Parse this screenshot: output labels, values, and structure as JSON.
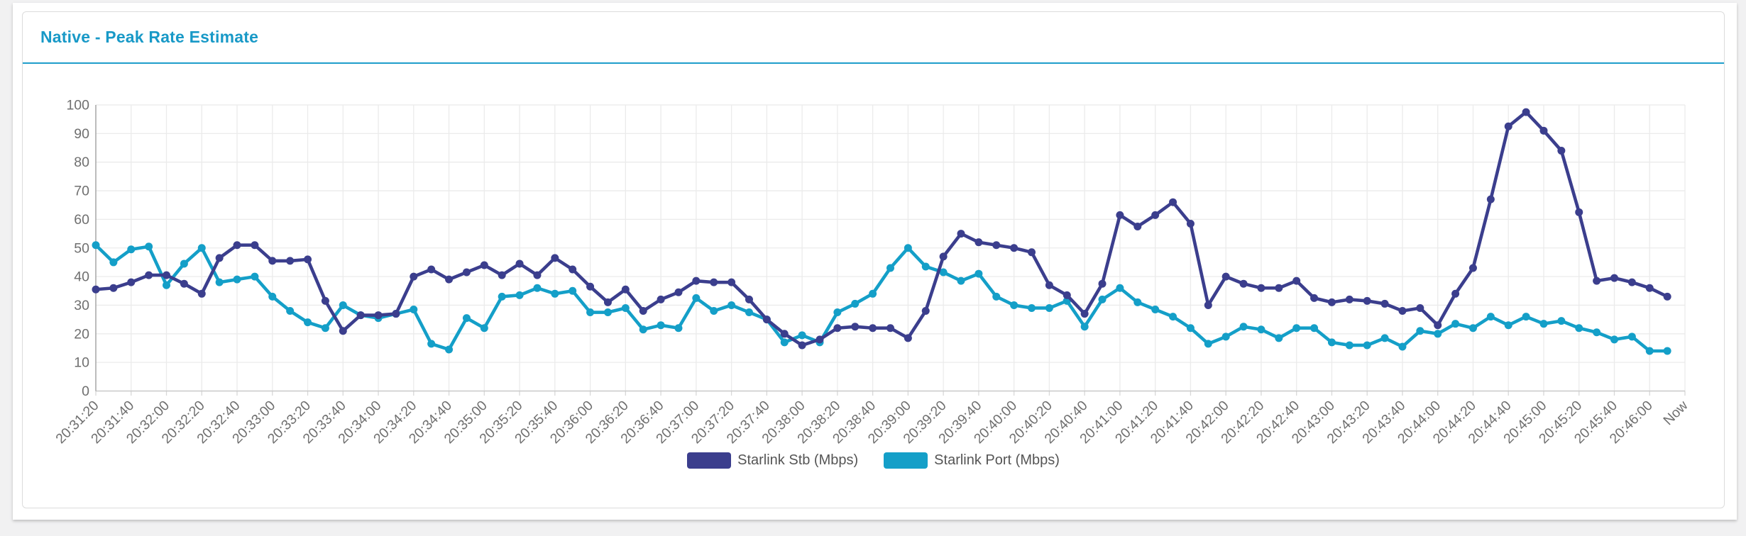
{
  "card": {
    "title": "Native - Peak Rate Estimate"
  },
  "colors": {
    "title": "#1899c7",
    "header_rule": "#1f9ecb",
    "grid_line": "#ebebeb",
    "x_axis_line": "#c9c9c9",
    "y_axis_line": "#ababab",
    "tick_stub": "#d8d8d8",
    "axis_label_text": "#6f6f6f",
    "legend_text": "#555555",
    "card_border": "#dcdcdc",
    "page_background": "#f1f1f2"
  },
  "chart_data": {
    "type": "line",
    "title": "Native - Peak Rate Estimate",
    "xlabel": "",
    "ylabel": "",
    "ylim": [
      0,
      100
    ],
    "y_tick_step": 10,
    "grid": true,
    "legend_position": "bottom-center",
    "sample_interval_seconds": 10,
    "points_per_tick_interval": 2,
    "x_tick_labels": [
      "20:31:20",
      "20:31:40",
      "20:32:00",
      "20:32:20",
      "20:32:40",
      "20:33:00",
      "20:33:20",
      "20:33:40",
      "20:34:00",
      "20:34:20",
      "20:34:40",
      "20:35:00",
      "20:35:20",
      "20:35:40",
      "20:36:00",
      "20:36:20",
      "20:36:40",
      "20:37:00",
      "20:37:20",
      "20:37:40",
      "20:38:00",
      "20:38:20",
      "20:38:40",
      "20:39:00",
      "20:39:20",
      "20:39:40",
      "20:40:00",
      "20:40:20",
      "20:40:40",
      "20:41:00",
      "20:41:20",
      "20:41:40",
      "20:42:00",
      "20:42:20",
      "20:42:40",
      "20:43:00",
      "20:43:20",
      "20:43:40",
      "20:44:00",
      "20:44:20",
      "20:44:40",
      "20:45:00",
      "20:45:20",
      "20:45:40",
      "20:46:00",
      "Now"
    ],
    "series": [
      {
        "name": "Starlink Stb (Mbps)",
        "color": "#3b3e8d",
        "values": [
          35.5,
          36,
          38,
          40.5,
          40.5,
          37.5,
          34,
          46.5,
          51,
          51,
          45.5,
          45.5,
          46,
          31.5,
          21,
          26.5,
          26.5,
          27,
          40,
          42.5,
          39,
          41.5,
          44,
          40.5,
          44.5,
          40.5,
          46.5,
          42.5,
          36.5,
          31,
          35.5,
          28,
          32,
          34.5,
          38.5,
          38,
          38,
          32,
          25,
          20,
          16,
          18,
          22,
          22.5,
          22,
          22,
          18.5,
          28,
          47,
          55,
          52,
          51,
          50,
          48.5,
          37,
          33.5,
          27,
          37.5,
          61.5,
          57.5,
          61.5,
          66,
          58.5,
          30,
          40,
          37.5,
          36,
          36,
          38.5,
          32.5,
          31,
          32,
          31.5,
          30.5,
          28,
          29,
          23,
          34,
          43,
          67,
          92.5,
          97.5,
          91,
          84,
          62.5,
          38.5,
          39.5,
          38,
          36,
          33
        ]
      },
      {
        "name": "Starlink Port (Mbps)",
        "color": "#149fc8",
        "values": [
          51,
          45,
          49.5,
          50.5,
          37,
          44.5,
          50,
          38,
          39,
          40,
          33,
          28,
          24,
          22,
          30,
          26.5,
          25.5,
          27,
          28.5,
          16.5,
          14.5,
          25.5,
          22,
          33,
          33.5,
          36,
          34,
          35,
          27.5,
          27.5,
          29,
          21.5,
          23,
          22,
          32.5,
          28,
          30,
          27.5,
          25,
          17,
          19.5,
          17,
          27.5,
          30.5,
          34,
          43,
          50,
          43.5,
          41.5,
          38.5,
          41,
          33,
          30,
          29,
          29,
          31.5,
          22.5,
          32,
          36,
          31,
          28.5,
          26,
          22,
          16.5,
          19,
          22.5,
          21.5,
          18.5,
          22,
          22,
          17,
          16,
          16,
          18.5,
          15.5,
          21,
          20,
          23.5,
          22,
          26,
          23,
          26,
          23.5,
          24.5,
          22,
          20.5,
          18,
          19,
          14,
          14
        ]
      }
    ]
  }
}
